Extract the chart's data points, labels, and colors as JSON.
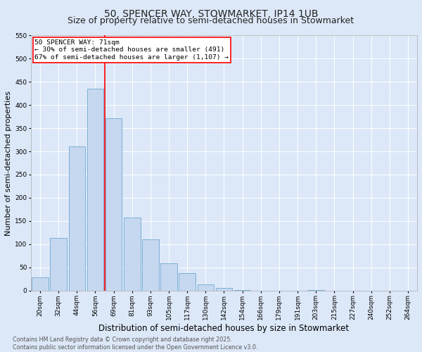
{
  "title": "50, SPENCER WAY, STOWMARKET, IP14 1UB",
  "subtitle": "Size of property relative to semi-detached houses in Stowmarket",
  "xlabel": "Distribution of semi-detached houses by size in Stowmarket",
  "ylabel": "Number of semi-detached properties",
  "categories": [
    "20sqm",
    "32sqm",
    "44sqm",
    "56sqm",
    "69sqm",
    "81sqm",
    "93sqm",
    "105sqm",
    "117sqm",
    "130sqm",
    "142sqm",
    "154sqm",
    "166sqm",
    "179sqm",
    "191sqm",
    "203sqm",
    "215sqm",
    "227sqm",
    "240sqm",
    "252sqm",
    "264sqm"
  ],
  "values": [
    28,
    113,
    310,
    435,
    372,
    158,
    110,
    58,
    37,
    13,
    5,
    1,
    0,
    0,
    0,
    1,
    0,
    0,
    0,
    0,
    0
  ],
  "bar_color": "#c5d8f0",
  "bar_edge_color": "#6fa8d0",
  "vline_color": "red",
  "vline_x_index": 3.5,
  "annotation_title": "50 SPENCER WAY: 71sqm",
  "annotation_line1": "← 30% of semi-detached houses are smaller (491)",
  "annotation_line2": "67% of semi-detached houses are larger (1,107) →",
  "annotation_box_color": "white",
  "annotation_box_edge_color": "red",
  "ylim": [
    0,
    550
  ],
  "yticks": [
    0,
    50,
    100,
    150,
    200,
    250,
    300,
    350,
    400,
    450,
    500,
    550
  ],
  "title_fontsize": 10,
  "subtitle_fontsize": 9,
  "xlabel_fontsize": 8.5,
  "ylabel_fontsize": 8,
  "footer_line1": "Contains HM Land Registry data © Crown copyright and database right 2025.",
  "footer_line2": "Contains public sector information licensed under the Open Government Licence v3.0.",
  "background_color": "#dce8f8",
  "plot_background_color": "#dce8f8",
  "grid_color": "white",
  "title_color": "#222222",
  "tick_label_fontsize": 6.5,
  "annotation_fontsize": 6.8,
  "footer_fontsize": 5.8
}
